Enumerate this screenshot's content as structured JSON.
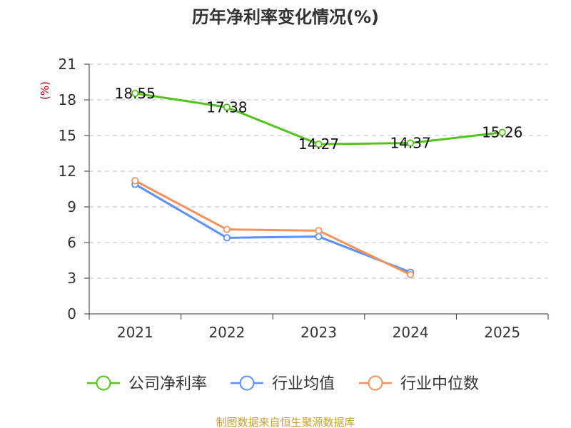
{
  "chart_data": {
    "type": "line",
    "title": "历年净利率变化情况(%)",
    "ylabel": "(%)",
    "xlabel": "",
    "categories": [
      "2021",
      "2022",
      "2023",
      "2024",
      "2025"
    ],
    "ylim": [
      0,
      21
    ],
    "yticks": [
      0,
      3,
      6,
      9,
      12,
      15,
      18,
      21
    ],
    "grid": true,
    "legend_position": "bottom",
    "series": [
      {
        "name": "公司净利率",
        "color": "#52c41a",
        "values": [
          18.55,
          17.38,
          14.27,
          14.37,
          15.26
        ],
        "labels": [
          "18.55",
          "17.38",
          "14.27",
          "14.37",
          "15.26"
        ]
      },
      {
        "name": "行业均值",
        "color": "#5b8ff9",
        "values": [
          10.9,
          6.4,
          6.5,
          3.5,
          null
        ]
      },
      {
        "name": "行业中位数",
        "color": "#f6905d",
        "values": [
          11.2,
          7.1,
          7.0,
          3.3,
          null
        ]
      }
    ]
  },
  "colors": {
    "unit": "#cc0000",
    "source": "#c8a03c",
    "grid": "#cccccc",
    "axis": "#333333"
  },
  "source": "制图数据来自恒生聚源数据库"
}
